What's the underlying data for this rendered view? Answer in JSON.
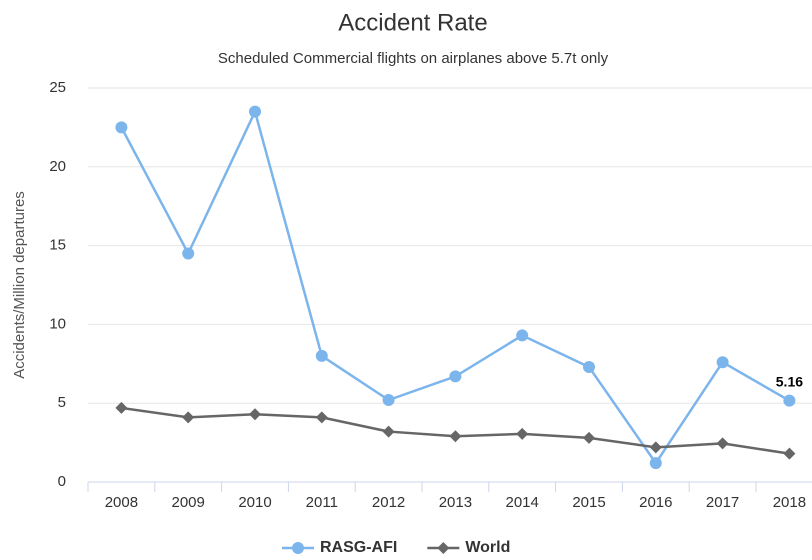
{
  "chart_data": {
    "type": "line",
    "title": "Accident Rate",
    "subtitle": "Scheduled Commercial flights on airplanes above 5.7t only",
    "y_label": "Accidents/Million departures",
    "categories": [
      "2008",
      "2009",
      "2010",
      "2011",
      "2012",
      "2013",
      "2014",
      "2015",
      "2016",
      "2017",
      "2018"
    ],
    "series": [
      {
        "name": "RASG-AFI",
        "color": "#7cb5ec",
        "marker": "circle",
        "values": [
          22.5,
          14.5,
          23.5,
          8.0,
          5.2,
          6.7,
          9.3,
          7.3,
          1.2,
          7.6,
          5.16
        ]
      },
      {
        "name": "World",
        "color": "#666666",
        "marker": "diamond",
        "values": [
          4.7,
          4.1,
          4.3,
          4.1,
          3.2,
          2.9,
          3.05,
          2.8,
          2.2,
          2.45,
          1.8
        ]
      }
    ],
    "ylim": [
      0,
      25
    ],
    "yticks": [
      0,
      5,
      10,
      15,
      20,
      25
    ],
    "grid": true,
    "legend": "bottom"
  }
}
